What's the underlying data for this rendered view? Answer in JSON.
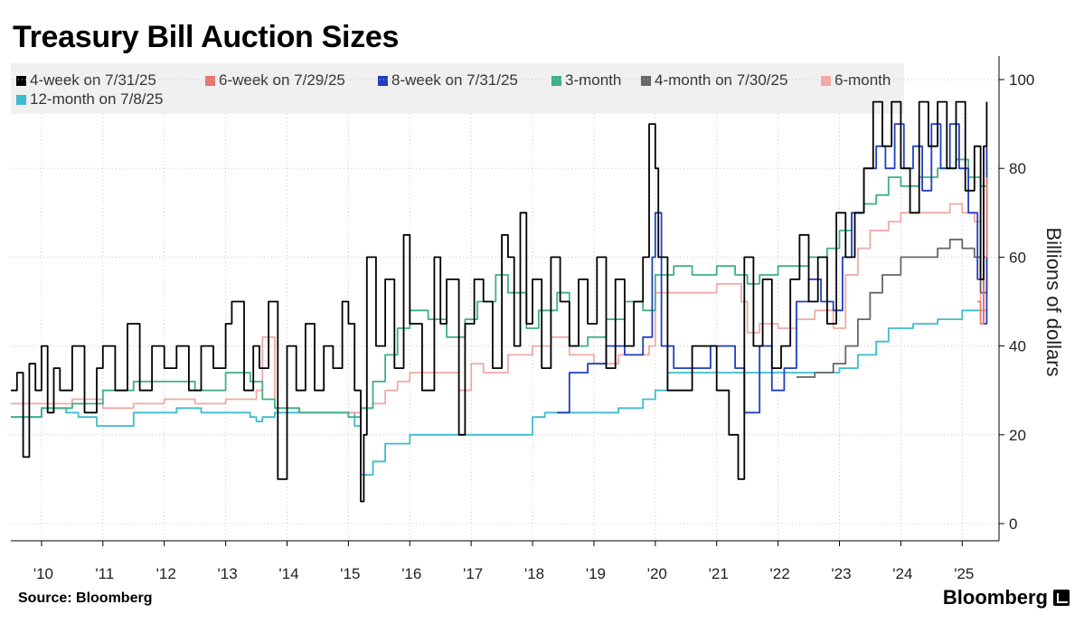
{
  "title": "Treasury Bill Auction Sizes",
  "source": "Source: Bloomberg",
  "brand": "Bloomberg",
  "legend": [
    {
      "label": "4-week on 7/31/25",
      "color": "#000000"
    },
    {
      "label": "6-week on 7/29/25",
      "color": "#e8766f"
    },
    {
      "label": "8-week on 7/31/25",
      "color": "#1f3fbf"
    },
    {
      "label": "3-month",
      "color": "#3fae8a"
    },
    {
      "label": "4-month on 7/30/25",
      "color": "#666666"
    },
    {
      "label": "6-month",
      "color": "#f2a8a3"
    },
    {
      "label": "12-month on 7/8/25",
      "color": "#3cbcd0"
    }
  ],
  "chart_data": {
    "type": "line",
    "ylabel": "Billions of dollars",
    "ylim": [
      0,
      100
    ],
    "yticks": [
      0,
      20,
      40,
      60,
      80,
      100
    ],
    "xlim": [
      2009.5,
      2025.6
    ],
    "xticks": [
      {
        "label": "'10",
        "value": 2010
      },
      {
        "label": "'11",
        "value": 2011
      },
      {
        "label": "'12",
        "value": 2012
      },
      {
        "label": "'13",
        "value": 2013
      },
      {
        "label": "'14",
        "value": 2014
      },
      {
        "label": "'15",
        "value": 2015
      },
      {
        "label": "'16",
        "value": 2016
      },
      {
        "label": "'17",
        "value": 2017
      },
      {
        "label": "'18",
        "value": 2018
      },
      {
        "label": "'19",
        "value": 2019
      },
      {
        "label": "'20",
        "value": 2020
      },
      {
        "label": "'21",
        "value": 2021
      },
      {
        "label": "'22",
        "value": 2022
      },
      {
        "label": "'23",
        "value": 2023
      },
      {
        "label": "'24",
        "value": 2024
      },
      {
        "label": "'25",
        "value": 2025
      }
    ],
    "grid": true,
    "series": [
      {
        "name": "12-month on 7/8/25",
        "color": "#3cbcd0",
        "x": [
          2009.5,
          2010.0,
          2010.4,
          2010.6,
          2010.9,
          2011.5,
          2011.8,
          2012.2,
          2012.6,
          2013.0,
          2013.4,
          2013.5,
          2013.6,
          2013.8,
          2014.2,
          2014.6,
          2014.9,
          2015.0,
          2015.1,
          2015.2,
          2015.4,
          2015.6,
          2016.0,
          2016.6,
          2017.0,
          2017.4,
          2017.8,
          2018.0,
          2018.2,
          2018.6,
          2019.0,
          2019.4,
          2019.8,
          2020.0,
          2020.2,
          2020.5,
          2021.0,
          2021.5,
          2022.0,
          2022.5,
          2023.0,
          2023.3,
          2023.6,
          2023.8,
          2024.2,
          2024.6,
          2025.0,
          2025.3,
          2025.35
        ],
        "y": [
          24,
          26,
          25,
          24,
          22,
          25,
          25,
          26,
          25,
          25,
          24,
          23,
          24,
          25,
          25,
          25,
          25,
          25,
          22,
          11,
          14,
          18,
          20,
          20,
          20,
          20,
          20,
          24,
          25,
          25,
          25,
          26,
          28,
          30,
          34,
          34,
          34,
          34,
          34,
          34,
          35,
          38,
          41,
          44,
          45,
          46,
          48,
          48,
          48
        ]
      },
      {
        "name": "6-month",
        "color": "#f2a8a3",
        "x": [
          2009.5,
          2010.0,
          2010.5,
          2011.0,
          2011.5,
          2012.0,
          2012.5,
          2013.0,
          2013.5,
          2013.6,
          2013.8,
          2014.2,
          2014.6,
          2015.0,
          2015.2,
          2015.4,
          2015.6,
          2015.8,
          2016.0,
          2016.4,
          2016.8,
          2017.0,
          2017.2,
          2017.6,
          2018.0,
          2018.3,
          2018.6,
          2019.0,
          2019.4,
          2019.7,
          2019.9,
          2020.0,
          2020.4,
          2020.8,
          2021.0,
          2021.4,
          2021.5,
          2021.7,
          2022.0,
          2022.3,
          2022.6,
          2022.9,
          2023.1,
          2023.3,
          2023.5,
          2023.8,
          2024.0,
          2024.4,
          2024.8,
          2025.0,
          2025.2,
          2025.3,
          2025.4
        ],
        "y": [
          27,
          27,
          28,
          26,
          27,
          28,
          27,
          28,
          30,
          42,
          26,
          25,
          25,
          25,
          26,
          27,
          30,
          32,
          34,
          34,
          30,
          36,
          34,
          38,
          40,
          42,
          38,
          36,
          38,
          38,
          40,
          52,
          52,
          52,
          54,
          50,
          43,
          45,
          44,
          46,
          48,
          44,
          56,
          62,
          66,
          68,
          70,
          70,
          72,
          70,
          68,
          48,
          73
        ]
      },
      {
        "name": "4-month on 7/30/25",
        "color": "#666666",
        "x": [
          2022.3,
          2022.6,
          2022.9,
          2023.1,
          2023.3,
          2023.5,
          2023.7,
          2024.0,
          2024.4,
          2024.6,
          2024.8,
          2025.0,
          2025.2,
          2025.3,
          2025.4
        ],
        "y": [
          33,
          34,
          36,
          40,
          46,
          52,
          56,
          60,
          60,
          62,
          64,
          62,
          60,
          52,
          65
        ]
      },
      {
        "name": "3-month",
        "color": "#3fae8a",
        "x": [
          2009.5,
          2010.0,
          2010.5,
          2011.0,
          2011.5,
          2012.0,
          2012.5,
          2013.0,
          2013.4,
          2013.6,
          2013.8,
          2014.2,
          2014.6,
          2015.0,
          2015.2,
          2015.4,
          2015.6,
          2015.8,
          2016.0,
          2016.3,
          2016.6,
          2016.9,
          2017.1,
          2017.4,
          2017.6,
          2017.9,
          2018.1,
          2018.4,
          2018.6,
          2018.9,
          2019.2,
          2019.5,
          2019.8,
          2020.0,
          2020.3,
          2020.6,
          2021.0,
          2021.3,
          2021.5,
          2021.7,
          2022.0,
          2022.3,
          2022.5,
          2022.8,
          2023.0,
          2023.2,
          2023.4,
          2023.6,
          2023.8,
          2024.0,
          2024.3,
          2024.6,
          2024.9,
          2025.1,
          2025.3,
          2025.4
        ],
        "y": [
          24,
          26,
          27,
          30,
          32,
          32,
          30,
          34,
          32,
          28,
          26,
          25,
          25,
          24,
          26,
          32,
          38,
          44,
          48,
          46,
          42,
          46,
          50,
          56,
          52,
          44,
          48,
          52,
          40,
          42,
          46,
          50,
          48,
          56,
          58,
          56,
          58,
          56,
          54,
          56,
          58,
          58,
          60,
          62,
          66,
          70,
          72,
          74,
          78,
          76,
          78,
          80,
          82,
          78,
          76,
          82
        ]
      },
      {
        "name": "8-week on 7/31/25",
        "color": "#1f3fbf",
        "x": [
          2018.4,
          2018.6,
          2018.9,
          2019.2,
          2019.5,
          2019.8,
          2019.95,
          2020.0,
          2020.1,
          2020.3,
          2020.6,
          2020.9,
          2021.1,
          2021.3,
          2021.45,
          2021.55,
          2021.7,
          2021.9,
          2022.1,
          2022.3,
          2022.5,
          2022.7,
          2022.9,
          2023.05,
          2023.2,
          2023.4,
          2023.6,
          2023.75,
          2023.9,
          2024.05,
          2024.2,
          2024.35,
          2024.5,
          2024.65,
          2024.8,
          2024.95,
          2025.1,
          2025.25,
          2025.35,
          2025.4
        ],
        "y": [
          25,
          34,
          36,
          40,
          38,
          42,
          60,
          70,
          40,
          35,
          35,
          40,
          40,
          35,
          25,
          25,
          40,
          30,
          35,
          50,
          55,
          50,
          48,
          60,
          70,
          80,
          85,
          80,
          90,
          80,
          85,
          75,
          90,
          80,
          90,
          80,
          70,
          55,
          45,
          85
        ]
      },
      {
        "name": "6-week on 7/29/25",
        "color": "#e8766f",
        "x": [
          2025.25,
          2025.3,
          2025.35,
          2025.4
        ],
        "y": [
          50,
          45,
          60,
          78
        ]
      },
      {
        "name": "4-week on 7/31/25",
        "color": "#000000",
        "x": [
          2009.5,
          2009.6,
          2009.7,
          2009.8,
          2009.9,
          2010.0,
          2010.1,
          2010.2,
          2010.3,
          2010.5,
          2010.7,
          2010.9,
          2011.0,
          2011.2,
          2011.4,
          2011.6,
          2011.8,
          2012.0,
          2012.2,
          2012.4,
          2012.6,
          2012.8,
          2013.0,
          2013.1,
          2013.3,
          2013.45,
          2013.55,
          2013.7,
          2013.85,
          2014.0,
          2014.15,
          2014.3,
          2014.45,
          2014.6,
          2014.75,
          2014.9,
          2015.0,
          2015.1,
          2015.2,
          2015.25,
          2015.3,
          2015.45,
          2015.6,
          2015.75,
          2015.9,
          2016.0,
          2016.2,
          2016.4,
          2016.5,
          2016.6,
          2016.8,
          2016.9,
          2017.05,
          2017.2,
          2017.35,
          2017.5,
          2017.6,
          2017.7,
          2017.8,
          2017.9,
          2018.0,
          2018.15,
          2018.3,
          2018.45,
          2018.6,
          2018.75,
          2018.9,
          2019.05,
          2019.2,
          2019.35,
          2019.5,
          2019.65,
          2019.8,
          2019.9,
          2020.0,
          2020.05,
          2020.2,
          2020.4,
          2020.6,
          2020.8,
          2021.0,
          2021.2,
          2021.35,
          2021.45,
          2021.6,
          2021.75,
          2021.9,
          2022.05,
          2022.2,
          2022.35,
          2022.5,
          2022.65,
          2022.8,
          2022.95,
          2023.1,
          2023.25,
          2023.4,
          2023.55,
          2023.7,
          2023.85,
          2024.0,
          2024.15,
          2024.3,
          2024.45,
          2024.6,
          2024.75,
          2024.9,
          2025.05,
          2025.2,
          2025.3,
          2025.35,
          2025.4
        ],
        "y": [
          30,
          34,
          15,
          36,
          30,
          40,
          25,
          35,
          30,
          40,
          25,
          35,
          40,
          30,
          45,
          30,
          40,
          35,
          40,
          30,
          40,
          35,
          45,
          50,
          30,
          40,
          35,
          50,
          10,
          40,
          30,
          45,
          30,
          40,
          35,
          50,
          45,
          30,
          5,
          20,
          60,
          40,
          55,
          35,
          65,
          45,
          30,
          60,
          45,
          55,
          20,
          45,
          55,
          50,
          35,
          65,
          60,
          40,
          70,
          45,
          55,
          35,
          60,
          50,
          40,
          55,
          45,
          60,
          35,
          55,
          40,
          50,
          60,
          90,
          80,
          60,
          30,
          30,
          40,
          40,
          30,
          20,
          10,
          60,
          40,
          55,
          35,
          40,
          55,
          65,
          50,
          60,
          45,
          70,
          60,
          70,
          80,
          95,
          85,
          95,
          80,
          70,
          95,
          85,
          95,
          80,
          95,
          75,
          85,
          55,
          85,
          95
        ]
      }
    ]
  }
}
